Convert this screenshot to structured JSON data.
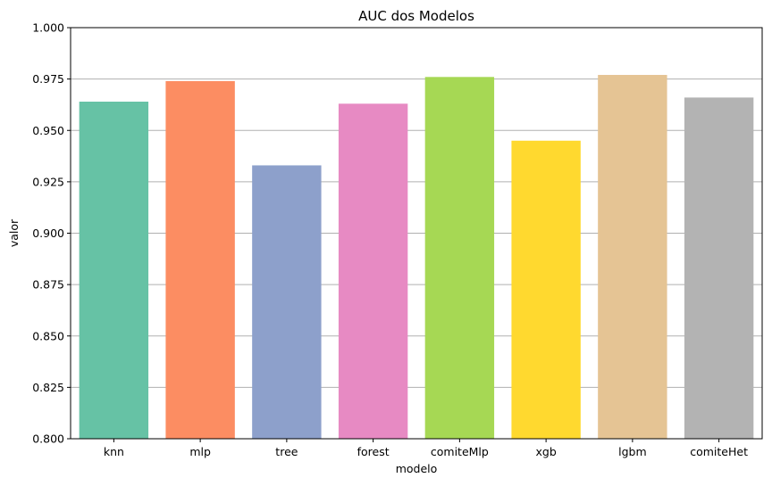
{
  "chart_data": {
    "type": "bar",
    "title": "AUC dos Modelos",
    "xlabel": "modelo",
    "ylabel": "valor",
    "ylim": [
      0.8,
      1.0
    ],
    "yticks": [
      0.8,
      0.825,
      0.85,
      0.875,
      0.9,
      0.925,
      0.95,
      0.975,
      1.0
    ],
    "ytick_labels": [
      "0.800",
      "0.825",
      "0.850",
      "0.875",
      "0.900",
      "0.925",
      "0.950",
      "0.975",
      "1.000"
    ],
    "grid": "horizontal",
    "categories": [
      "knn",
      "mlp",
      "tree",
      "forest",
      "comiteMlp",
      "xgb",
      "lgbm",
      "comiteHet"
    ],
    "values": [
      0.964,
      0.974,
      0.933,
      0.963,
      0.976,
      0.945,
      0.977,
      0.966
    ],
    "colors": [
      "#66c2a5",
      "#fc8d62",
      "#8da0cb",
      "#e78ac3",
      "#a6d854",
      "#ffd92f",
      "#e5c494",
      "#b3b3b3"
    ]
  }
}
